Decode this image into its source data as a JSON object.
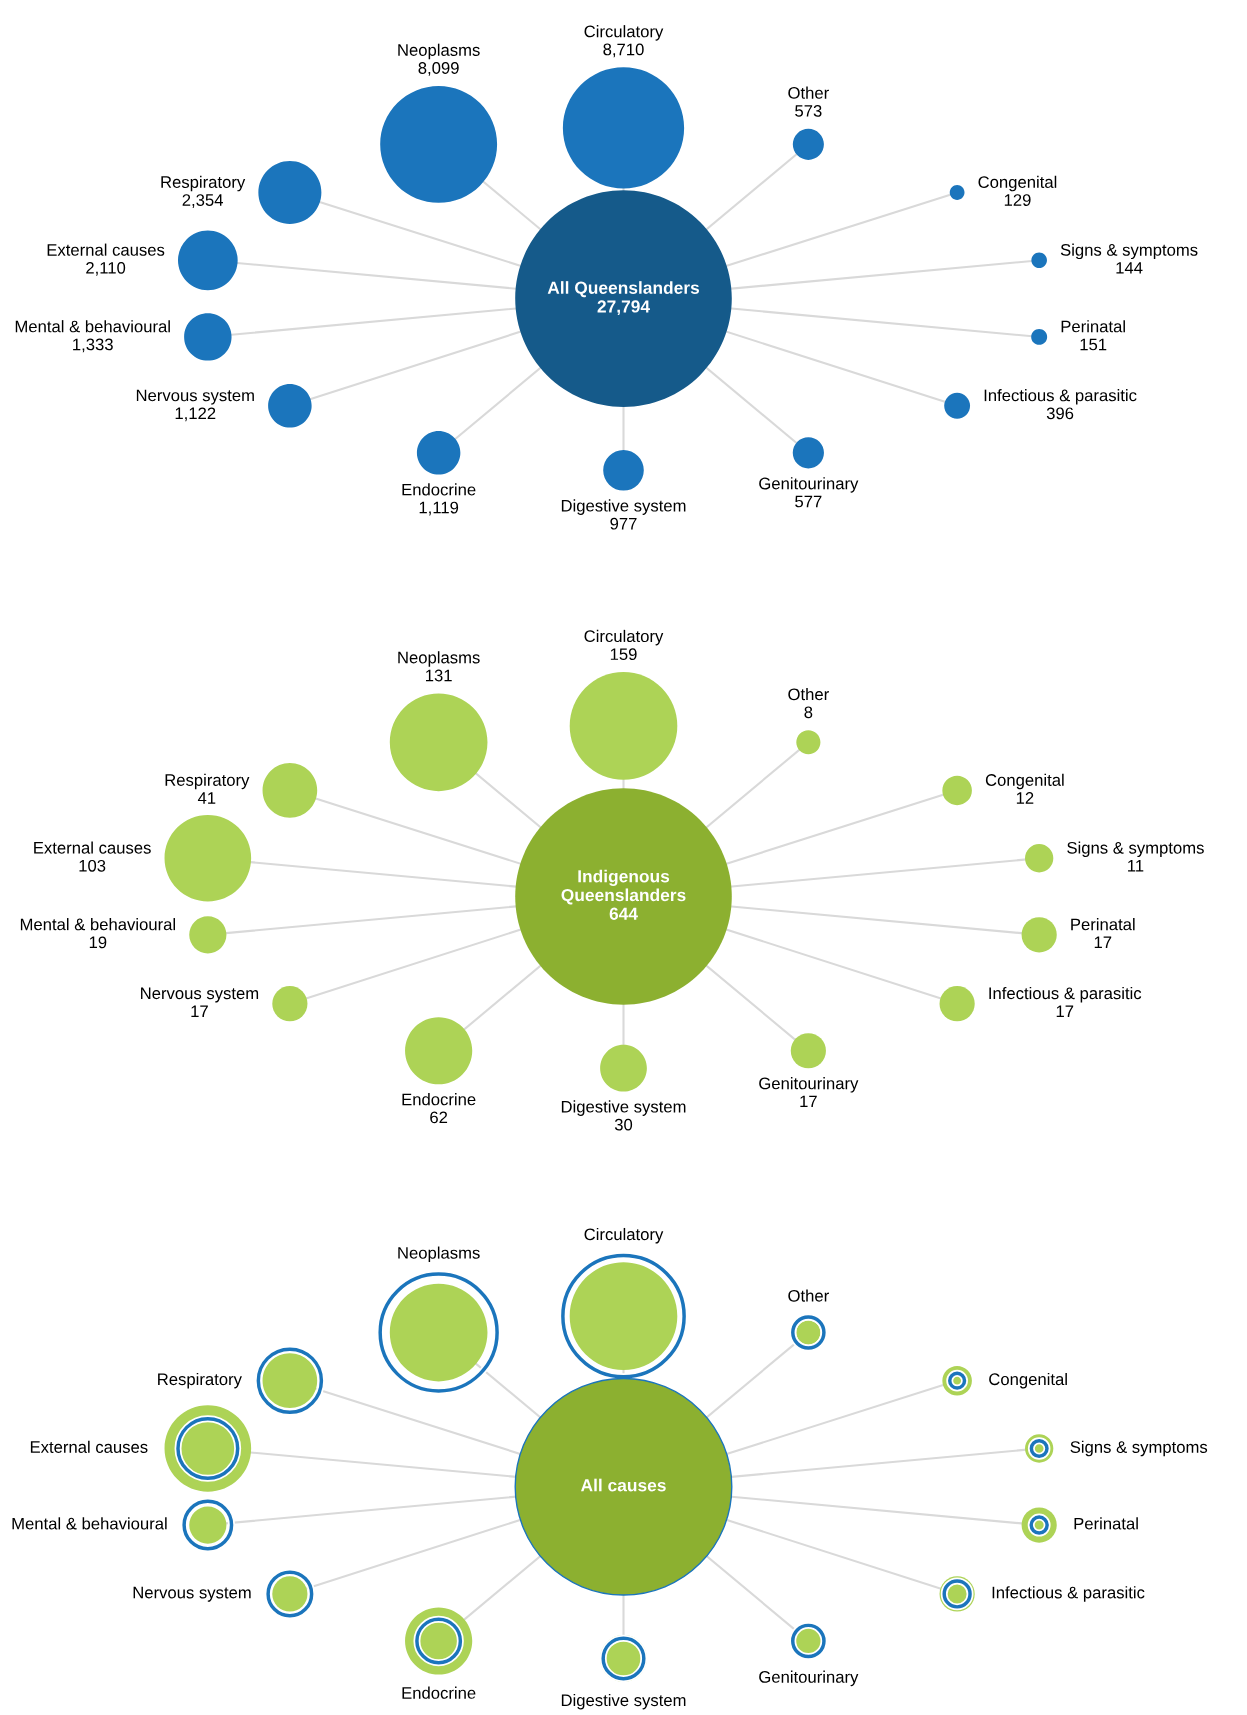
{
  "chart_data": [
    {
      "type": "other",
      "categories": [
        "All Queenslanders",
        "Circulatory",
        "Other",
        "Congenital",
        "Signs & symptoms",
        "Perinatal",
        "Infectious & parasitic",
        "Genitourinary",
        "Digestive system",
        "Endocrine",
        "Nervous system",
        "Mental & behavioural",
        "External causes",
        "Respiratory",
        "Neoplasms"
      ],
      "values": [
        27794,
        8710,
        573,
        129,
        144,
        151,
        396,
        577,
        977,
        1119,
        1122,
        1333,
        2110,
        2354,
        8099
      ],
      "value_labels": [
        "27,794",
        "8,710",
        "573",
        "129",
        "144",
        "151",
        "396",
        "577",
        "977",
        "1,119",
        "1,122",
        "1,333",
        "2,110",
        "2,354",
        "8,099"
      ],
      "colors": [
        "#155a8a",
        "#1b75bc",
        "#1b75bc",
        "#1b75bc",
        "#1b75bc",
        "#1b75bc",
        "#1b75bc",
        "#1b75bc",
        "#1b75bc",
        "#1b75bc",
        "#1b75bc",
        "#1b75bc",
        "#1b75bc",
        "#1b75bc",
        "#1b75bc"
      ]
    },
    {
      "type": "other",
      "categories": [
        "Indigenous Queenslanders",
        "Circulatory",
        "Other",
        "Congenital",
        "Signs & symptoms",
        "Perinatal",
        "Infectious & parasitic",
        "Genitourinary",
        "Digestive system",
        "Endocrine",
        "Nervous system",
        "Mental & behavioural",
        "External causes",
        "Respiratory",
        "Neoplasms"
      ],
      "values": [
        644,
        159,
        8,
        12,
        11,
        17,
        17,
        17,
        30,
        62,
        17,
        19,
        103,
        41,
        131
      ],
      "value_labels": [
        "644",
        "159",
        "8",
        "12",
        "11",
        "17",
        "17",
        "17",
        "30",
        "62",
        "17",
        "19",
        "103",
        "41",
        "131"
      ],
      "colors": [
        "#8cb030",
        "#add356",
        "#add356",
        "#add356",
        "#add356",
        "#add356",
        "#add356",
        "#add356",
        "#add356",
        "#add356",
        "#add356",
        "#add356",
        "#add356",
        "#add356",
        "#add356"
      ]
    },
    {
      "type": "other",
      "categories": [
        "All causes",
        "Circulatory",
        "Other",
        "Congenital",
        "Signs & symptoms",
        "Perinatal",
        "Infectious & parasitic",
        "Genitourinary",
        "Digestive system",
        "Endocrine",
        "Nervous system",
        "Mental & behavioural",
        "External causes",
        "Respiratory",
        "Neoplasms"
      ]
    }
  ]
}
